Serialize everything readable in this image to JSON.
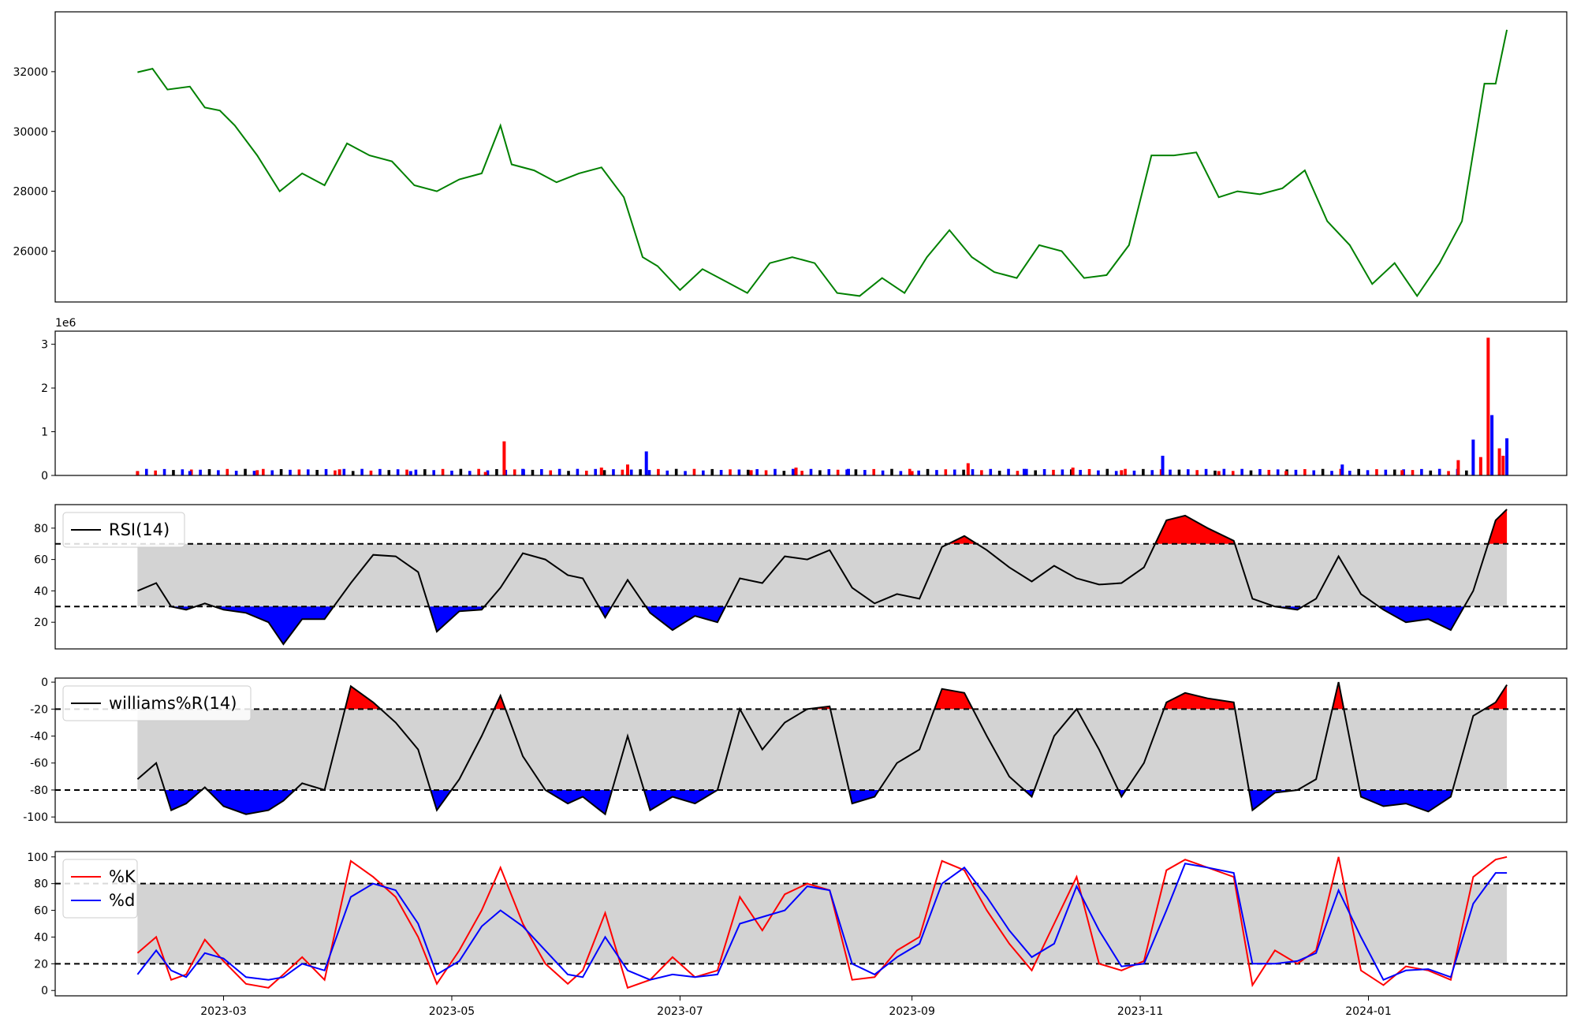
{
  "chart_data": [
    {
      "id": "price",
      "type": "line",
      "color": "#008000",
      "ylim": [
        24300,
        34000
      ],
      "yticks": [
        26000,
        28000,
        30000,
        32000
      ],
      "x": [
        "2023-02-06",
        "2023-02-10",
        "2023-02-14",
        "2023-02-20",
        "2023-02-24",
        "2023-02-28",
        "2023-03-04",
        "2023-03-10",
        "2023-03-16",
        "2023-03-22",
        "2023-03-28",
        "2023-04-03",
        "2023-04-09",
        "2023-04-15",
        "2023-04-21",
        "2023-04-27",
        "2023-05-03",
        "2023-05-09",
        "2023-05-14",
        "2023-05-17",
        "2023-05-23",
        "2023-05-29",
        "2023-06-04",
        "2023-06-10",
        "2023-06-16",
        "2023-06-21",
        "2023-06-25",
        "2023-07-01",
        "2023-07-07",
        "2023-07-13",
        "2023-07-19",
        "2023-07-25",
        "2023-07-31",
        "2023-08-06",
        "2023-08-12",
        "2023-08-18",
        "2023-08-24",
        "2023-08-30",
        "2023-09-05",
        "2023-09-11",
        "2023-09-17",
        "2023-09-23",
        "2023-09-29",
        "2023-10-05",
        "2023-10-11",
        "2023-10-17",
        "2023-10-23",
        "2023-10-29",
        "2023-11-04",
        "2023-11-10",
        "2023-11-16",
        "2023-11-22",
        "2023-11-27",
        "2023-12-03",
        "2023-12-09",
        "2023-12-15",
        "2023-12-21",
        "2023-12-27",
        "2024-01-02",
        "2024-01-08",
        "2024-01-14",
        "2024-01-20",
        "2024-01-26",
        "2024-02-01",
        "2024-02-04",
        "2024-02-07"
      ],
      "values": [
        31980,
        32100,
        31400,
        31500,
        30800,
        30700,
        30200,
        29200,
        28000,
        28600,
        28200,
        29600,
        29200,
        29000,
        28200,
        28000,
        28400,
        28600,
        30200,
        28900,
        28700,
        28300,
        28600,
        28800,
        27800,
        25800,
        25500,
        24700,
        25400,
        25000,
        24600,
        25600,
        25800,
        25600,
        24600,
        24500,
        25100,
        24600,
        25800,
        26700,
        25800,
        25300,
        25100,
        26200,
        26000,
        25100,
        25200,
        26200,
        29200,
        29200,
        29300,
        27800,
        28000,
        27900,
        28100,
        28700,
        27000,
        26200,
        24900,
        25600,
        24500,
        25600,
        27000,
        31600,
        31600,
        33400
      ]
    },
    {
      "id": "volume",
      "type": "bar",
      "exponent_label": "1e6",
      "ylim": [
        0,
        3.3
      ],
      "yticks": [
        0,
        1,
        2,
        3
      ],
      "colors": {
        "up": "#ff0000",
        "down": "#0000ff",
        "flat": "#000000"
      },
      "x": [
        "2023-02-06",
        "2023-02-20",
        "2023-03-10",
        "2023-04-01",
        "2023-04-20",
        "2023-05-10",
        "2023-05-15",
        "2023-05-20",
        "2023-06-10",
        "2023-06-17",
        "2023-06-22",
        "2023-07-20",
        "2023-08-01",
        "2023-08-15",
        "2023-09-01",
        "2023-09-16",
        "2023-10-01",
        "2023-10-14",
        "2023-10-27",
        "2023-11-07",
        "2023-11-22",
        "2023-12-10",
        "2023-12-25",
        "2024-01-10",
        "2024-01-25",
        "2024-01-29",
        "2024-01-31",
        "2024-02-02",
        "2024-02-03",
        "2024-02-05",
        "2024-02-06",
        "2024-02-07"
      ],
      "values": [
        0.1,
        0.1,
        0.12,
        0.14,
        0.1,
        0.08,
        0.78,
        0.15,
        0.18,
        0.25,
        0.55,
        0.12,
        0.18,
        0.15,
        0.1,
        0.28,
        0.15,
        0.18,
        0.12,
        0.45,
        0.1,
        0.1,
        0.25,
        0.12,
        0.35,
        0.82,
        0.42,
        3.15,
        1.38,
        0.62,
        0.45,
        0.85
      ]
    },
    {
      "id": "rsi",
      "type": "area",
      "legend": "RSI(14)",
      "ylim": [
        3,
        95
      ],
      "yticks": [
        20,
        40,
        60,
        80
      ],
      "bands": [
        30,
        70
      ],
      "x": [
        "2023-02-06",
        "2023-02-11",
        "2023-02-15",
        "2023-02-19",
        "2023-02-24",
        "2023-03-01",
        "2023-03-07",
        "2023-03-13",
        "2023-03-17",
        "2023-03-22",
        "2023-03-28",
        "2023-04-04",
        "2023-04-10",
        "2023-04-16",
        "2023-04-22",
        "2023-04-27",
        "2023-05-03",
        "2023-05-09",
        "2023-05-14",
        "2023-05-20",
        "2023-05-26",
        "2023-06-01",
        "2023-06-05",
        "2023-06-11",
        "2023-06-17",
        "2023-06-23",
        "2023-06-29",
        "2023-07-05",
        "2023-07-11",
        "2023-07-17",
        "2023-07-23",
        "2023-07-29",
        "2023-08-04",
        "2023-08-10",
        "2023-08-16",
        "2023-08-22",
        "2023-08-28",
        "2023-09-03",
        "2023-09-09",
        "2023-09-15",
        "2023-09-21",
        "2023-09-27",
        "2023-10-03",
        "2023-10-09",
        "2023-10-15",
        "2023-10-21",
        "2023-10-27",
        "2023-11-02",
        "2023-11-08",
        "2023-11-13",
        "2023-11-19",
        "2023-11-26",
        "2023-12-01",
        "2023-12-07",
        "2023-12-13",
        "2023-12-18",
        "2023-12-24",
        "2023-12-30",
        "2024-01-05",
        "2024-01-11",
        "2024-01-17",
        "2024-01-23",
        "2024-01-29",
        "2024-02-04",
        "2024-02-07"
      ],
      "values": [
        40,
        45,
        30,
        28,
        32,
        28,
        26,
        20,
        6,
        22,
        22,
        45,
        63,
        62,
        52,
        14,
        27,
        28,
        42,
        64,
        60,
        50,
        48,
        23,
        47,
        26,
        15,
        24,
        20,
        48,
        45,
        62,
        60,
        66,
        42,
        32,
        38,
        35,
        68,
        75,
        66,
        55,
        46,
        56,
        48,
        44,
        45,
        55,
        85,
        88,
        80,
        72,
        35,
        30,
        28,
        35,
        62,
        38,
        28,
        20,
        22,
        15,
        40,
        85,
        92
      ]
    },
    {
      "id": "williams",
      "type": "area",
      "legend": "williams%R(14)",
      "ylim": [
        -104,
        3
      ],
      "yticks": [
        -100,
        -80,
        -60,
        -40,
        -20,
        0
      ],
      "bands": [
        -80,
        -20
      ],
      "x": [
        "2023-02-06",
        "2023-02-11",
        "2023-02-15",
        "2023-02-19",
        "2023-02-24",
        "2023-03-01",
        "2023-03-07",
        "2023-03-13",
        "2023-03-17",
        "2023-03-22",
        "2023-03-28",
        "2023-04-04",
        "2023-04-10",
        "2023-04-16",
        "2023-04-22",
        "2023-04-27",
        "2023-05-03",
        "2023-05-09",
        "2023-05-14",
        "2023-05-20",
        "2023-05-26",
        "2023-06-01",
        "2023-06-05",
        "2023-06-11",
        "2023-06-17",
        "2023-06-23",
        "2023-06-29",
        "2023-07-05",
        "2023-07-11",
        "2023-07-17",
        "2023-07-23",
        "2023-07-29",
        "2023-08-04",
        "2023-08-10",
        "2023-08-16",
        "2023-08-22",
        "2023-08-28",
        "2023-09-03",
        "2023-09-09",
        "2023-09-15",
        "2023-09-21",
        "2023-09-27",
        "2023-10-03",
        "2023-10-09",
        "2023-10-15",
        "2023-10-21",
        "2023-10-27",
        "2023-11-02",
        "2023-11-08",
        "2023-11-13",
        "2023-11-19",
        "2023-11-26",
        "2023-12-01",
        "2023-12-07",
        "2023-12-13",
        "2023-12-18",
        "2023-12-24",
        "2023-12-30",
        "2024-01-05",
        "2024-01-11",
        "2024-01-17",
        "2024-01-23",
        "2024-01-29",
        "2024-02-04",
        "2024-02-07"
      ],
      "values": [
        -72,
        -60,
        -95,
        -90,
        -78,
        -92,
        -98,
        -95,
        -88,
        -75,
        -80,
        -3,
        -15,
        -30,
        -50,
        -95,
        -72,
        -40,
        -10,
        -55,
        -80,
        -90,
        -85,
        -98,
        -40,
        -95,
        -85,
        -90,
        -80,
        -20,
        -50,
        -30,
        -20,
        -18,
        -90,
        -85,
        -60,
        -50,
        -5,
        -8,
        -40,
        -70,
        -85,
        -40,
        -20,
        -50,
        -85,
        -60,
        -15,
        -8,
        -12,
        -15,
        -95,
        -82,
        -80,
        -72,
        0,
        -85,
        -92,
        -90,
        -96,
        -85,
        -25,
        -15,
        -2
      ]
    },
    {
      "id": "stoch",
      "type": "line",
      "ylim": [
        -4,
        104
      ],
      "yticks": [
        0,
        20,
        40,
        60,
        80,
        100
      ],
      "bands": [
        20,
        80
      ],
      "series": [
        {
          "name": "%K",
          "color": "#ff0000",
          "x": [
            "2023-02-06",
            "2023-02-11",
            "2023-02-15",
            "2023-02-19",
            "2023-02-24",
            "2023-03-01",
            "2023-03-07",
            "2023-03-13",
            "2023-03-17",
            "2023-03-22",
            "2023-03-28",
            "2023-04-04",
            "2023-04-10",
            "2023-04-16",
            "2023-04-22",
            "2023-04-27",
            "2023-05-03",
            "2023-05-09",
            "2023-05-14",
            "2023-05-20",
            "2023-05-26",
            "2023-06-01",
            "2023-06-05",
            "2023-06-11",
            "2023-06-17",
            "2023-06-23",
            "2023-06-29",
            "2023-07-05",
            "2023-07-11",
            "2023-07-17",
            "2023-07-23",
            "2023-07-29",
            "2023-08-04",
            "2023-08-10",
            "2023-08-16",
            "2023-08-22",
            "2023-08-28",
            "2023-09-03",
            "2023-09-09",
            "2023-09-15",
            "2023-09-21",
            "2023-09-27",
            "2023-10-03",
            "2023-10-09",
            "2023-10-15",
            "2023-10-21",
            "2023-10-27",
            "2023-11-02",
            "2023-11-08",
            "2023-11-13",
            "2023-11-19",
            "2023-11-26",
            "2023-12-01",
            "2023-12-07",
            "2023-12-13",
            "2023-12-18",
            "2023-12-24",
            "2023-12-30",
            "2024-01-05",
            "2024-01-11",
            "2024-01-17",
            "2024-01-23",
            "2024-01-29",
            "2024-02-04",
            "2024-02-07"
          ],
          "values": [
            28,
            40,
            8,
            12,
            38,
            22,
            5,
            2,
            12,
            25,
            8,
            97,
            85,
            70,
            40,
            5,
            30,
            60,
            92,
            50,
            20,
            5,
            15,
            58,
            2,
            8,
            25,
            10,
            15,
            70,
            45,
            72,
            80,
            75,
            8,
            10,
            30,
            40,
            97,
            90,
            60,
            35,
            15,
            50,
            85,
            20,
            15,
            22,
            90,
            98,
            92,
            85,
            4,
            30,
            20,
            30,
            100,
            15,
            4,
            18,
            15,
            8,
            85,
            98,
            100
          ]
        },
        {
          "name": "%d",
          "color": "#0000ff",
          "x": [
            "2023-02-06",
            "2023-02-11",
            "2023-02-15",
            "2023-02-19",
            "2023-02-24",
            "2023-03-01",
            "2023-03-07",
            "2023-03-13",
            "2023-03-17",
            "2023-03-22",
            "2023-03-28",
            "2023-04-04",
            "2023-04-10",
            "2023-04-16",
            "2023-04-22",
            "2023-04-27",
            "2023-05-03",
            "2023-05-09",
            "2023-05-14",
            "2023-05-20",
            "2023-05-26",
            "2023-06-01",
            "2023-06-05",
            "2023-06-11",
            "2023-06-17",
            "2023-06-23",
            "2023-06-29",
            "2023-07-05",
            "2023-07-11",
            "2023-07-17",
            "2023-07-23",
            "2023-07-29",
            "2023-08-04",
            "2023-08-10",
            "2023-08-16",
            "2023-08-22",
            "2023-08-28",
            "2023-09-03",
            "2023-09-09",
            "2023-09-15",
            "2023-09-21",
            "2023-09-27",
            "2023-10-03",
            "2023-10-09",
            "2023-10-15",
            "2023-10-21",
            "2023-10-27",
            "2023-11-02",
            "2023-11-08",
            "2023-11-13",
            "2023-11-19",
            "2023-11-26",
            "2023-12-01",
            "2023-12-07",
            "2023-12-13",
            "2023-12-18",
            "2023-12-24",
            "2023-12-30",
            "2024-01-05",
            "2024-01-11",
            "2024-01-17",
            "2024-01-23",
            "2024-01-29",
            "2024-02-04",
            "2024-02-07"
          ],
          "values": [
            12,
            30,
            15,
            10,
            28,
            24,
            10,
            8,
            10,
            20,
            15,
            70,
            80,
            75,
            50,
            12,
            22,
            48,
            60,
            48,
            30,
            12,
            10,
            40,
            15,
            8,
            12,
            10,
            12,
            50,
            55,
            60,
            78,
            75,
            20,
            12,
            25,
            35,
            80,
            92,
            70,
            45,
            25,
            35,
            78,
            45,
            18,
            20,
            60,
            95,
            92,
            88,
            20,
            20,
            22,
            28,
            75,
            40,
            8,
            15,
            16,
            10,
            65,
            88,
            88
          ]
        }
      ]
    }
  ],
  "x_axis": {
    "start": "2023-01-15",
    "end": "2024-02-23",
    "ticks": [
      "2023-03",
      "2023-05",
      "2023-07",
      "2023-09",
      "2023-11",
      "2024-01"
    ]
  },
  "band_colors": {
    "above": "#ff0000",
    "below": "#0000ff",
    "fill": "#d3d3d3",
    "line": "#000000"
  }
}
